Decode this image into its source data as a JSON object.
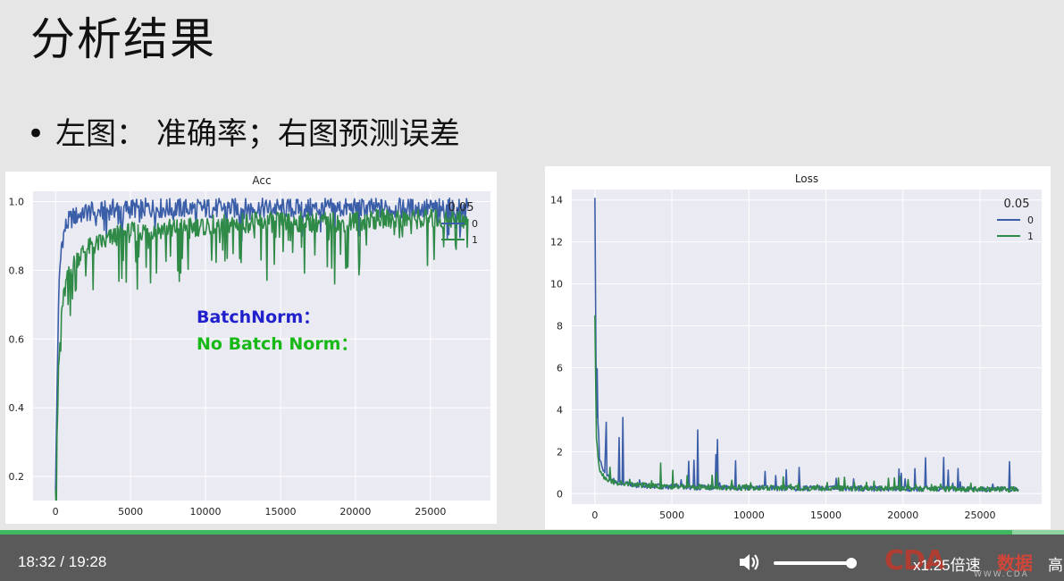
{
  "slide": {
    "title": "分析结果",
    "bullet_symbol": "•",
    "bullet_text": "左图： 准确率；右图预测误差"
  },
  "chart_data": [
    {
      "type": "line",
      "title": "Acc",
      "xlabel": "",
      "ylabel": "",
      "xlim": [
        -1500,
        29000
      ],
      "ylim": [
        0.13,
        1.03
      ],
      "xticks": [
        0,
        5000,
        10000,
        15000,
        20000,
        25000
      ],
      "yticks": [
        0.2,
        0.4,
        0.6,
        0.8,
        1.0
      ],
      "ytick_labels": [
        "0.2",
        "0.4",
        "0.6",
        "0.8",
        "1.0"
      ],
      "grid": true,
      "legend": {
        "title": "0.05",
        "placement": "top-right"
      },
      "series": [
        {
          "name": "0",
          "color": "#3b5ea8",
          "x": [
            0,
            200,
            400,
            700,
            1000,
            1500,
            2000,
            3000,
            4000,
            5000,
            7000,
            10000,
            13000,
            16000,
            19000,
            22000,
            25000,
            27500
          ],
          "y": [
            0.16,
            0.72,
            0.88,
            0.93,
            0.95,
            0.96,
            0.97,
            0.97,
            0.98,
            0.98,
            0.98,
            0.98,
            0.98,
            0.98,
            0.98,
            0.98,
            0.98,
            0.98
          ]
        },
        {
          "name": "1",
          "color": "#2f8a47",
          "x": [
            0,
            200,
            400,
            700,
            1000,
            1500,
            2000,
            3000,
            4000,
            5000,
            7000,
            10000,
            13000,
            16000,
            19000,
            22000,
            25000,
            27500
          ],
          "y": [
            0.16,
            0.5,
            0.68,
            0.76,
            0.8,
            0.84,
            0.86,
            0.88,
            0.9,
            0.91,
            0.92,
            0.93,
            0.94,
            0.94,
            0.94,
            0.95,
            0.95,
            0.95
          ]
        }
      ],
      "annotations": [
        {
          "text": "BatchNorm：",
          "color": "#2020cc"
        },
        {
          "text": "No Batch Norm：",
          "color": "#17b817"
        }
      ]
    },
    {
      "type": "line",
      "title": "Loss",
      "xlabel": "",
      "ylabel": "",
      "xlim": [
        -1500,
        29000
      ],
      "ylim": [
        -0.5,
        14.5
      ],
      "xticks": [
        0,
        5000,
        10000,
        15000,
        20000,
        25000
      ],
      "yticks": [
        0,
        2,
        4,
        6,
        8,
        10,
        12,
        14
      ],
      "grid": true,
      "legend": {
        "title": "0.05",
        "placement": "top-right"
      },
      "series": [
        {
          "name": "0",
          "color": "#3b5ea8",
          "x": [
            0,
            100,
            300,
            600,
            1000,
            1500,
            2000,
            3000,
            4000,
            5000,
            7000,
            10000,
            13000,
            16000,
            19000,
            22000,
            25000,
            27500
          ],
          "y": [
            14.1,
            3.5,
            1.6,
            1.0,
            0.7,
            0.5,
            0.45,
            0.4,
            0.35,
            0.33,
            0.3,
            0.28,
            0.26,
            0.25,
            0.24,
            0.23,
            0.22,
            0.2
          ]
        },
        {
          "name": "1",
          "color": "#2f8a47",
          "x": [
            0,
            100,
            300,
            600,
            1000,
            1500,
            2000,
            3000,
            4000,
            5000,
            7000,
            10000,
            13000,
            16000,
            19000,
            22000,
            25000,
            27500
          ],
          "y": [
            8.5,
            2.5,
            1.2,
            0.8,
            0.6,
            0.5,
            0.45,
            0.4,
            0.35,
            0.32,
            0.3,
            0.28,
            0.26,
            0.25,
            0.24,
            0.23,
            0.22,
            0.2
          ]
        }
      ]
    }
  ],
  "player": {
    "current_time": "18:32",
    "time_separator": "/",
    "total_time": "19:28",
    "progress_fraction": 0.951,
    "volume_fraction": 0.97,
    "speed_label": "x1.25倍速",
    "quality_label": "高",
    "volume_icon": "speaker-icon",
    "logo": {
      "mark": "CDA",
      "name": "数据",
      "url": "WWW.CDA"
    },
    "accent_color": "#3fb860"
  }
}
